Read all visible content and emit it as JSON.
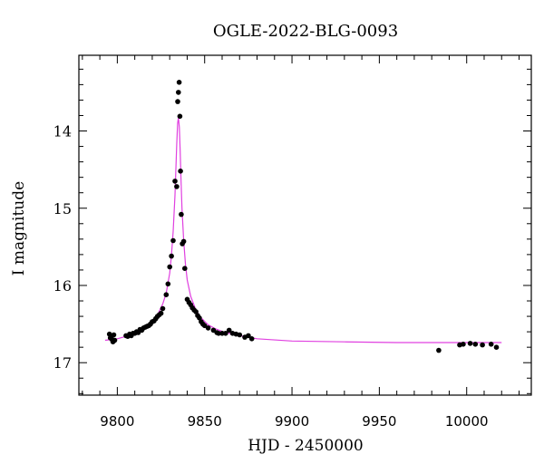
{
  "chart_data": {
    "type": "scatter",
    "title": "OGLE-2022-BLG-0093",
    "xlabel": "HJD - 2450000",
    "ylabel": "I magnitude",
    "xlim": [
      9778,
      10037
    ],
    "ylim": [
      17.42,
      13.02
    ],
    "y_inverted": true,
    "grid": false,
    "x_ticks": [
      9800,
      9850,
      9900,
      9950,
      10000
    ],
    "y_ticks": [
      14,
      15,
      16,
      17
    ],
    "colors": {
      "points": "#000000",
      "model": "#e040e0",
      "axes": "#000000"
    },
    "series": [
      {
        "type": "points",
        "x": [
          9795.5,
          9796.0,
          9796.5,
          9797.0,
          9797.5,
          9798.0,
          9798.5,
          9805.0,
          9806.0,
          9807.0,
          9808.0,
          9809.0,
          9810.0,
          9811.0,
          9812.0,
          9813.0,
          9814.0,
          9815.0,
          9816.0,
          9817.0,
          9818.0,
          9819.0,
          9820.0,
          9821.0,
          9822.0,
          9823.0,
          9824.0,
          9825.0,
          9826.0,
          9828.0,
          9829.0,
          9830.0,
          9831.0,
          9832.0,
          9833.0,
          9834.0,
          9834.6,
          9835.0,
          9835.4,
          9835.8,
          9836.2,
          9836.6,
          9837.2,
          9838.0,
          9838.6,
          9840.0,
          9841.0,
          9842.0,
          9843.0,
          9844.0,
          9845.0,
          9846.0,
          9847.0,
          9848.0,
          9849.0,
          9850.0,
          9852.0,
          9855.0,
          9857.0,
          9858.0,
          9860.0,
          9862.0,
          9864.0,
          9866.0,
          9868.0,
          9870.0,
          9873.0,
          9875.0,
          9877.0,
          9984.0,
          9996.0,
          9998.0,
          10002.0,
          10005.0,
          10009.0,
          10014.0,
          10017.0
        ],
        "y": [
          16.63,
          16.68,
          16.66,
          16.7,
          16.73,
          16.64,
          16.71,
          16.65,
          16.66,
          16.63,
          16.65,
          16.62,
          16.62,
          16.6,
          16.61,
          16.57,
          16.58,
          16.55,
          16.54,
          16.53,
          16.52,
          16.5,
          16.47,
          16.46,
          16.43,
          16.4,
          16.38,
          16.36,
          16.3,
          16.12,
          15.98,
          15.76,
          15.62,
          15.42,
          14.65,
          14.72,
          13.62,
          13.5,
          13.37,
          13.81,
          14.52,
          15.08,
          15.46,
          15.43,
          15.78,
          16.18,
          16.22,
          16.25,
          16.29,
          16.32,
          16.34,
          16.39,
          16.42,
          16.47,
          16.5,
          16.52,
          16.55,
          16.58,
          16.61,
          16.62,
          16.62,
          16.62,
          16.58,
          16.62,
          16.63,
          16.64,
          16.67,
          16.65,
          16.69,
          16.84,
          16.77,
          16.76,
          16.75,
          16.76,
          16.77,
          16.76,
          16.8
        ]
      },
      {
        "type": "model",
        "x": [
          9793,
          9800,
          9805,
          9810,
          9815,
          9820,
          9823,
          9826,
          9828,
          9830,
          9831,
          9832,
          9833,
          9834,
          9834.5,
          9835,
          9835.5,
          9836,
          9836.5,
          9837,
          9838,
          9839,
          9840,
          9842,
          9845,
          9848,
          9852,
          9856,
          9862,
          9870,
          9880,
          9900,
          9930,
          9960,
          9990,
          10020
        ],
        "y": [
          16.71,
          16.69,
          16.66,
          16.61,
          16.55,
          16.46,
          16.38,
          16.24,
          16.1,
          15.84,
          15.61,
          15.3,
          14.83,
          14.18,
          13.9,
          13.83,
          13.95,
          14.25,
          14.65,
          15.0,
          15.42,
          15.72,
          15.93,
          16.14,
          16.32,
          16.42,
          16.51,
          16.56,
          16.61,
          16.65,
          16.69,
          16.72,
          16.73,
          16.74,
          16.74,
          16.74
        ]
      }
    ]
  }
}
